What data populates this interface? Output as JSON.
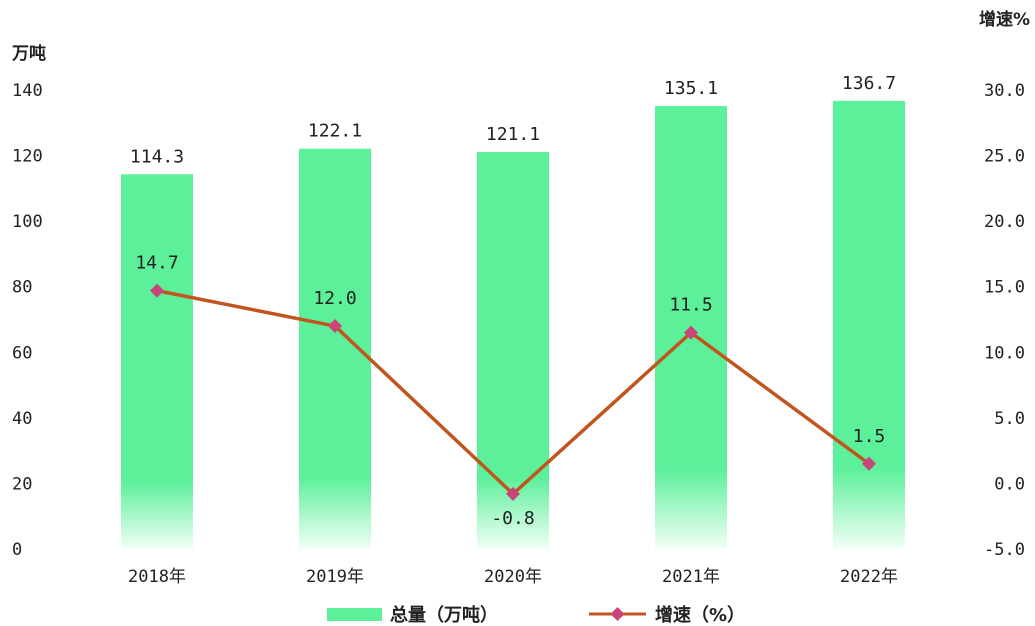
{
  "chart_data": {
    "type": "bar",
    "categories": [
      "2018年",
      "2019年",
      "2020年",
      "2021年",
      "2022年"
    ],
    "series": [
      {
        "name": "总量（万吨）",
        "type": "bar",
        "axis": "left",
        "color": "#5cf09a",
        "values": [
          114.3,
          122.1,
          121.1,
          135.1,
          136.7
        ],
        "labels": [
          "114.3",
          "122.1",
          "121.1",
          "135.1",
          "136.7"
        ]
      },
      {
        "name": "增速（%）",
        "type": "line",
        "axis": "right",
        "color": "#c0561e",
        "marker_color": "#c8457a",
        "marker": "diamond",
        "values": [
          14.7,
          12.0,
          -0.8,
          11.5,
          1.5
        ],
        "labels": [
          "14.7",
          "12.0",
          "-0.8",
          "11.5",
          "1.5"
        ]
      }
    ],
    "y_left": {
      "unit": "万吨",
      "range": [
        0,
        140
      ],
      "ticks": [
        "0",
        "20",
        "40",
        "60",
        "80",
        "100",
        "120",
        "140"
      ]
    },
    "y_right": {
      "unit": "增速%",
      "range": [
        -5,
        30
      ],
      "ticks": [
        "-5.0",
        "0.0",
        "5.0",
        "10.0",
        "15.0",
        "20.0",
        "25.0",
        "30.0"
      ]
    },
    "grid": false,
    "legend_position": "bottom"
  }
}
